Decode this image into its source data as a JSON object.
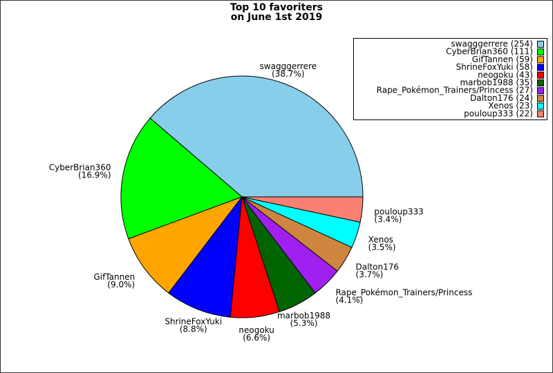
{
  "chart_data": {
    "type": "pie",
    "title": "Top 10 favoriters",
    "subtitle": "on June 1st 2019",
    "categories": [
      "swagggerrere",
      "CyberBrian360",
      "GifTannen",
      "ShrineFoxYuki",
      "neogoku",
      "marbob1988",
      "Rape_Pokémon_Trainers/Princess",
      "Dalton176",
      "Xenos",
      "pouloup333"
    ],
    "values": [
      254,
      111,
      59,
      58,
      43,
      35,
      27,
      24,
      23,
      22
    ],
    "value_labels": [
      "(38.7%)",
      "(16.9%)",
      "(9.0%)",
      "(8.8%)",
      "(6.6%)",
      "(5.3%)",
      "(4.1%)",
      "(3.7%)",
      "(3.5%)",
      "(3.4%)"
    ],
    "legend_labels": [
      "swagggerrere (254)",
      "CyberBrian360 (111)",
      "GifTannen (59)",
      "ShrineFoxYuki (58)",
      "neogoku (43)",
      "marbob1988 (35)",
      "Rape_Pokémon_Trainers/Princess (27)",
      "Dalton176 (24)",
      "Xenos (23)",
      "pouloup333 (22)"
    ],
    "colors": [
      "#87ceeb",
      "#00ff00",
      "#ffa500",
      "#0000ff",
      "#ff0000",
      "#006400",
      "#a020f0",
      "#cd853f",
      "#00ffff",
      "#fa8072"
    ],
    "legend": "upper right"
  }
}
